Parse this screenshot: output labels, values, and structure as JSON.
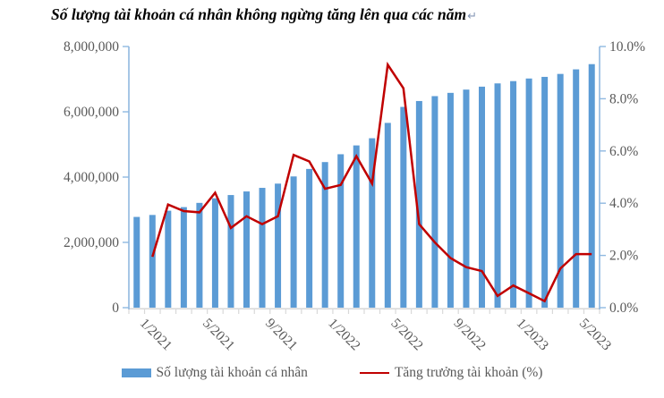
{
  "title": {
    "text": "Số lượng tài khoản cá nhân không ngừng tăng lên qua các năm",
    "return_mark": "↵"
  },
  "legend": {
    "bar_label": "Số lượng tài khoản cá nhân",
    "line_label": "Tăng trưởng tài khoản (%)"
  },
  "colors": {
    "bar": "#5B9BD5",
    "line": "#C00000",
    "axis_blue": "#8FB8E0",
    "axis_gray": "#D9D9D9",
    "tick_text": "#595959",
    "title_text": "#000000"
  },
  "chart_data": {
    "type": "bar",
    "subtype": "bar+line combo, dual axis",
    "title": "Số lượng tài khoản cá nhân không ngừng tăng lên qua các năm",
    "categories": [
      "1/2021",
      "2/2021",
      "3/2021",
      "4/2021",
      "5/2021",
      "6/2021",
      "7/2021",
      "8/2021",
      "9/2021",
      "10/2021",
      "11/2021",
      "12/2021",
      "1/2022",
      "2/2022",
      "3/2022",
      "4/2022",
      "5/2022",
      "6/2022",
      "7/2022",
      "8/2022",
      "9/2022",
      "10/2022",
      "11/2022",
      "12/2022",
      "1/2023",
      "2/2023",
      "3/2023",
      "4/2023",
      "5/2023",
      "6/2023"
    ],
    "series": [
      {
        "name": "Số lượng tài khoản cá nhân",
        "type": "bar",
        "axis": "left",
        "values": [
          2780000,
          2840000,
          2970000,
          3080000,
          3210000,
          3350000,
          3450000,
          3560000,
          3670000,
          3800000,
          4020000,
          4250000,
          4460000,
          4700000,
          4970000,
          5190000,
          5660000,
          6150000,
          6330000,
          6480000,
          6580000,
          6680000,
          6770000,
          6870000,
          6940000,
          7020000,
          7070000,
          7160000,
          7300000,
          7460000
        ]
      },
      {
        "name": "Tăng trưởng tài khoản (%)",
        "type": "line",
        "axis": "right",
        "values": [
          null,
          1.95,
          3.95,
          3.7,
          3.65,
          4.4,
          3.05,
          3.5,
          3.2,
          3.5,
          5.85,
          5.6,
          4.55,
          4.7,
          5.8,
          4.75,
          9.3,
          8.4,
          3.2,
          2.5,
          1.9,
          1.55,
          1.4,
          0.45,
          0.85,
          0.55,
          0.25,
          1.5,
          2.05,
          2.05
        ]
      }
    ],
    "x_tick_labels_shown": [
      "1/2021",
      "5/2021",
      "9/2021",
      "1/2022",
      "5/2022",
      "9/2022",
      "1/2023",
      "5/2023"
    ],
    "x_label_interval": 4,
    "left_axis": {
      "min": 0,
      "max": 8000000,
      "step": 2000000,
      "format": "thousands-comma"
    },
    "right_axis": {
      "min": 0,
      "max": 10,
      "step": 2,
      "format": "percent-1dp"
    },
    "grid": false,
    "legend_position": "bottom"
  }
}
